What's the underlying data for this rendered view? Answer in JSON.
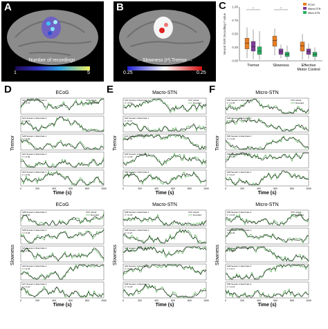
{
  "panels": {
    "A": {
      "letter": "A",
      "caption": "Number of recordings",
      "cbar_min": "1",
      "cbar_max": "5"
    },
    "B": {
      "letter": "B",
      "caption": "← Slowness |r²| Tremor →",
      "cbar_min": "0.25",
      "cbar_max": "0.25"
    },
    "C": {
      "letter": "C",
      "ylabel": "Neural SVR Decoding r² value"
    },
    "D": {
      "letter": "D",
      "title_top": "ECoG",
      "title_bottom": "ECoG"
    },
    "E": {
      "letter": "E",
      "title_top": "Macro-STN",
      "title_bottom": "Macro-STN"
    },
    "F": {
      "letter": "F",
      "title_top": "Micro-STN",
      "title_bottom": "Micro-STN"
    }
  },
  "row_labels": {
    "top": "Tremor",
    "bottom": "Slowness"
  },
  "xlabel": "Time (s)",
  "legend": {
    "actual": "Actual",
    "decoded": "Decoded"
  },
  "colors": {
    "ecog": "#e67e22",
    "macro": "#7d3c98",
    "micro": "#27ae60",
    "decoded": "#2e9d2e",
    "actual": "#111111"
  },
  "chart_data": [
    {
      "type": "box",
      "panel": "C",
      "ylabel": "Neural SVR Decoding r² value",
      "ylim": [
        0,
        1.0
      ],
      "yticks": [
        "0.00",
        "0.25",
        "0.50",
        "0.75",
        "1.00"
      ],
      "categories": [
        "Tremor",
        "Slowness",
        "Effective Motor Control"
      ],
      "legend_entries": [
        "ECoG",
        "Macro-STN",
        "Micro-STN"
      ],
      "series": [
        {
          "name": "ECoG",
          "median": [
            0.33,
            0.38,
            0.28
          ],
          "q1": [
            0.22,
            0.27,
            0.18
          ],
          "q3": [
            0.42,
            0.46,
            0.35
          ],
          "min": [
            0.05,
            0.1,
            0.02
          ],
          "max": [
            0.62,
            0.6,
            0.5
          ]
        },
        {
          "name": "Macro-STN",
          "median": [
            0.26,
            0.17,
            0.17
          ],
          "q1": [
            0.18,
            0.12,
            0.12
          ],
          "q3": [
            0.36,
            0.22,
            0.22
          ],
          "min": [
            0.03,
            0.05,
            0.04
          ],
          "max": [
            0.58,
            0.3,
            0.32
          ]
        },
        {
          "name": "Micro-STN",
          "median": [
            0.18,
            0.12,
            0.12
          ],
          "q1": [
            0.12,
            0.08,
            0.08
          ],
          "q3": [
            0.26,
            0.16,
            0.16
          ],
          "min": [
            0.02,
            0.02,
            0.01
          ],
          "max": [
            0.55,
            0.28,
            0.25
          ]
        }
      ]
    }
  ],
  "traces": {
    "D_top": [
      {
        "title": "S21 Session 4 Electrode 4",
        "r2": "r² = 0.75"
      },
      {
        "title": "S21 Session 4 Electrode 5",
        "r2": "r² = 0.71"
      },
      {
        "title": "S28 Session 1 Electrode 1",
        "r2": "r² = 0.63"
      },
      {
        "title": "S21 Session 4 Electrode 3",
        "r2": "r² = 0.55"
      },
      {
        "title": "S21 Session 4 Electrode 1",
        "r2": "r² = 0.53"
      }
    ],
    "E_top": [
      {
        "title": "S21 Session 4 Electrode 1",
        "r2": "r² = 0.51"
      },
      {
        "title": "S21 Session 2 Electrode 1",
        "r2": "r² = 0.47"
      },
      {
        "title": "S21 Session 2 Electrode 2",
        "r2": "r² = 0.46"
      },
      {
        "title": "S20 Session 1 Electrode 3",
        "r2": "r² = 0.45"
      },
      {
        "title": "S20 Session 1 Electrode 2",
        "r2": "r² = 0.44"
      }
    ],
    "F_top": [
      {
        "title": "S05 Session 4 Electrode 4",
        "r2": "r² = 0.35"
      },
      {
        "title": "S28 Session 1 Electrode 2",
        "r2": "r² = 0.31"
      },
      {
        "title": "S05 Session 3 Electrode 2",
        "r2": "r² = 0.29"
      },
      {
        "title": "S05 Session 2 Electrode 1",
        "r2": "r² = 0.28"
      },
      {
        "title": "S28 Session 1 Electrode 1",
        "r2": "r² = 0.27"
      }
    ],
    "D_bot": [
      {
        "title": "S28 Session 4 Electrode 4",
        "r2": "r² = 0.50"
      },
      {
        "title": "S28 Session 4 Electrode 2",
        "r2": "r² = 0.48"
      },
      {
        "title": "S27 Session 4 Electrode 3",
        "r2": "r² = 0.48"
      },
      {
        "title": "S24 Session 4 Electrode 4",
        "r2": "r² = 0.46"
      },
      {
        "title": "S27 Session 2 Electrode 2",
        "r2": "r² = 0.41"
      }
    ],
    "E_bot": [
      {
        "title": "S28 Session 4 Electrode 1",
        "r2": "r² = 0.23"
      },
      {
        "title": "S28 Session 4 Electrode 2",
        "r2": "r² = 0.21"
      },
      {
        "title": "S27 Session 2 Electrode 3",
        "r2": "r² = 0.20"
      },
      {
        "title": "S20 Session 1 Electrode 2",
        "r2": "r² = 0.18"
      },
      {
        "title": "S28 Session 1 Electrode 2",
        "r2": "r² = 0.18"
      }
    ],
    "F_bot": [
      {
        "title": "S05 Session 4 Electrode 4",
        "r2": "r² = 0.22"
      },
      {
        "title": "S28 Session 3 Electrode 1",
        "r2": "r² = 0.20"
      },
      {
        "title": "S05 Session 3 Electrode 1",
        "r2": "r² = 0.19"
      },
      {
        "title": "S28 Session 1 Electrode 3",
        "r2": "r² = 0.17"
      },
      {
        "title": "S05 Session 2 Electrode 3",
        "r2": "r² = 0.16"
      }
    ]
  },
  "time_ticks": [
    "0",
    "200",
    "400",
    "600",
    "800",
    "1000"
  ]
}
